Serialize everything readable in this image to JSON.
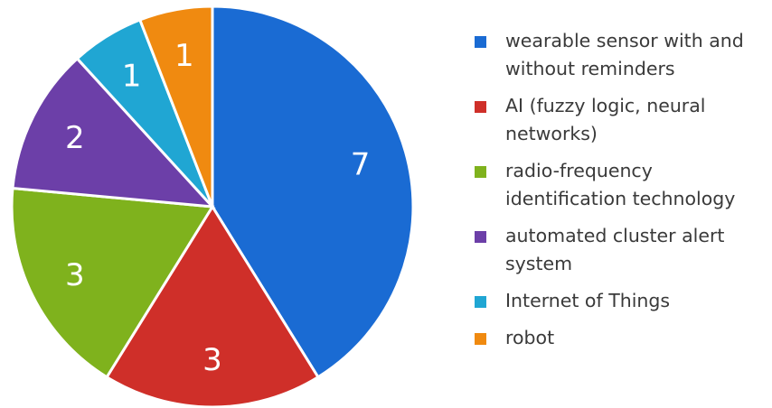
{
  "chart_data": {
    "type": "pie",
    "title": "",
    "slices": [
      {
        "label": "wearable sensor with and without reminders",
        "value": 7,
        "value_label": "7",
        "color": "#1a6bd3"
      },
      {
        "label": "AI (fuzzy logic, neural networks)",
        "value": 3,
        "value_label": "3",
        "color": "#cf2f29"
      },
      {
        "label": "radio-frequency identification technology",
        "value": 3,
        "value_label": "3",
        "color": "#7fb21d"
      },
      {
        "label": "automated cluster alert system",
        "value": 2,
        "value_label": "2",
        "color": "#6c3fa8"
      },
      {
        "label": "Internet of Things",
        "value": 1,
        "value_label": "1",
        "color": "#20a6d3"
      },
      {
        "label": "robot",
        "value": 1,
        "value_label": "1",
        "color": "#f08a10"
      }
    ],
    "legend_position": "right"
  }
}
